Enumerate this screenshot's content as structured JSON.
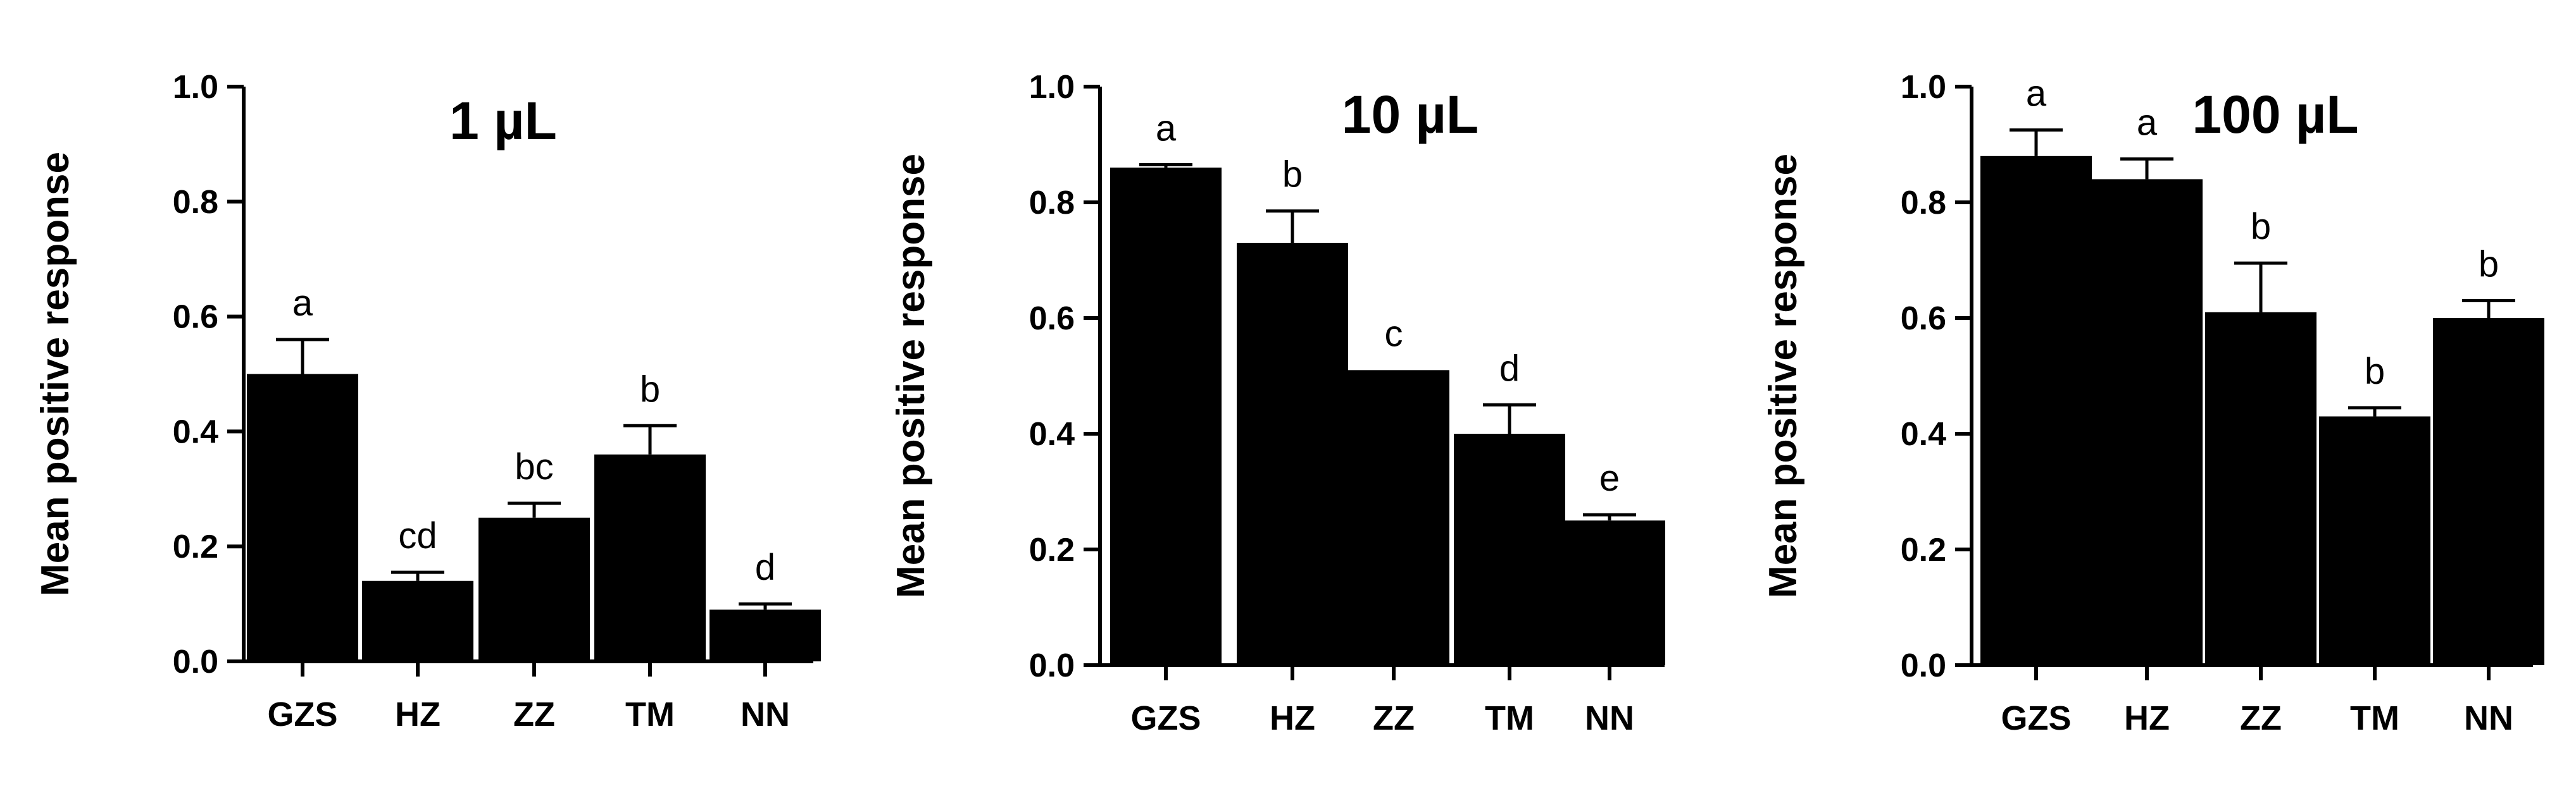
{
  "chart_data": [
    {
      "type": "bar",
      "title": "1 µL",
      "ylabel": "Mean positive response",
      "xlabel": "",
      "ylim": [
        0,
        1.0
      ],
      "yticks": [
        "0.0",
        "0.2",
        "0.4",
        "0.6",
        "0.8",
        "1.0"
      ],
      "categories": [
        "GZS",
        "HZ",
        "ZZ",
        "TM",
        "NN"
      ],
      "values": [
        0.5,
        0.14,
        0.25,
        0.36,
        0.09
      ],
      "errors": [
        0.06,
        0.015,
        0.025,
        0.05,
        0.01
      ],
      "letters": [
        "a",
        "cd",
        "bc",
        "b",
        "d"
      ],
      "grid": false,
      "bar_color": "#000000"
    },
    {
      "type": "bar",
      "title": "10 µL",
      "ylabel": "Mean positive response",
      "xlabel": "",
      "ylim": [
        0,
        1.0
      ],
      "yticks": [
        "0.0",
        "0.2",
        "0.4",
        "0.6",
        "0.8",
        "1.0"
      ],
      "categories": [
        "GZS",
        "HZ",
        "ZZ",
        "TM",
        "NN"
      ],
      "values": [
        0.86,
        0.73,
        0.51,
        0.4,
        0.25
      ],
      "errors": [
        0.005,
        0.055,
        0.0,
        0.05,
        0.01
      ],
      "letters": [
        "a",
        "b",
        "c",
        "d",
        "e"
      ],
      "grid": false,
      "bar_color": "#000000"
    },
    {
      "type": "bar",
      "title": "100 µL",
      "ylabel": "Mean positive response",
      "xlabel": "",
      "ylim": [
        0,
        1.0
      ],
      "yticks": [
        "0.0",
        "0.2",
        "0.4",
        "0.6",
        "0.8",
        "1.0"
      ],
      "categories": [
        "GZS",
        "HZ",
        "ZZ",
        "TM",
        "NN"
      ],
      "values": [
        0.88,
        0.84,
        0.61,
        0.43,
        0.6
      ],
      "errors": [
        0.045,
        0.035,
        0.085,
        0.015,
        0.03
      ],
      "letters": [
        "a",
        "a",
        "b",
        "b",
        "b"
      ],
      "grid": false,
      "bar_color": "#000000"
    }
  ]
}
